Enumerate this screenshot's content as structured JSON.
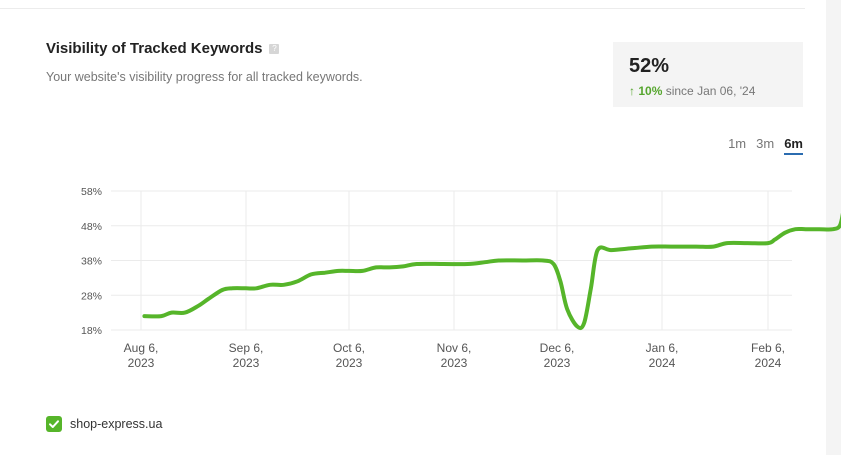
{
  "widget": {
    "title": "Visibility of Tracked Keywords",
    "help_icon": "help-icon",
    "help_glyph": "?",
    "subtitle": "Your website's visibility progress for all tracked keywords."
  },
  "stat": {
    "value": "52%",
    "change_arrow": "↑",
    "change": "10%",
    "since": "since Jan 06, '24"
  },
  "ranges": [
    "1m",
    "3m",
    "6m"
  ],
  "active_range": "6m",
  "legend": {
    "label": "shop-express.ua",
    "checked": true,
    "color": "#56b52a"
  },
  "chart_data": {
    "type": "line",
    "y_ticks": [
      "58%",
      "48%",
      "38%",
      "28%",
      "18%"
    ],
    "y_tick_values": [
      58,
      48,
      38,
      28,
      18
    ],
    "ylim": [
      18,
      58
    ],
    "x_ticks": [
      {
        "label": [
          "Aug 6,",
          "2023"
        ],
        "date": "2023-08-06"
      },
      {
        "label": [
          "Sep 6,",
          "2023"
        ],
        "date": "2023-09-06"
      },
      {
        "label": [
          "Oct 6,",
          "2023"
        ],
        "date": "2023-10-06"
      },
      {
        "label": [
          "Nov 6,",
          "2023"
        ],
        "date": "2023-11-06"
      },
      {
        "label": [
          "Dec 6,",
          "2023"
        ],
        "date": "2023-12-06"
      },
      {
        "label": [
          "Jan 6,",
          "2024"
        ],
        "date": "2024-01-06"
      },
      {
        "label": [
          "Feb 6,",
          "2024"
        ],
        "date": "2024-02-06"
      }
    ],
    "grid": true,
    "line_color": "#56b52a",
    "series": [
      {
        "name": "shop-express.ua",
        "points": [
          [
            "2023-08-07",
            22
          ],
          [
            "2023-08-12",
            22
          ],
          [
            "2023-08-15",
            23
          ],
          [
            "2023-08-19",
            23
          ],
          [
            "2023-08-23",
            25
          ],
          [
            "2023-08-26",
            27
          ],
          [
            "2023-08-30",
            29.5
          ],
          [
            "2023-09-02",
            30
          ],
          [
            "2023-09-06",
            30
          ],
          [
            "2023-09-09",
            30
          ],
          [
            "2023-09-13",
            31
          ],
          [
            "2023-09-17",
            31
          ],
          [
            "2023-09-21",
            32
          ],
          [
            "2023-09-25",
            34
          ],
          [
            "2023-09-29",
            34.5
          ],
          [
            "2023-10-03",
            35
          ],
          [
            "2023-10-06",
            35
          ],
          [
            "2023-10-10",
            35
          ],
          [
            "2023-10-14",
            36
          ],
          [
            "2023-10-18",
            36
          ],
          [
            "2023-10-22",
            36.3
          ],
          [
            "2023-10-26",
            37
          ],
          [
            "2023-11-03",
            37
          ],
          [
            "2023-11-10",
            37
          ],
          [
            "2023-11-15",
            37.5
          ],
          [
            "2023-11-19",
            38
          ],
          [
            "2023-11-26",
            38
          ],
          [
            "2023-12-02",
            38
          ],
          [
            "2023-12-05",
            37
          ],
          [
            "2023-12-07",
            32
          ],
          [
            "2023-12-09",
            24
          ],
          [
            "2023-12-12",
            19
          ],
          [
            "2023-12-14",
            20
          ],
          [
            "2023-12-16",
            30
          ],
          [
            "2023-12-18",
            41
          ],
          [
            "2023-12-22",
            41
          ],
          [
            "2023-12-28",
            41.5
          ],
          [
            "2024-01-03",
            42
          ],
          [
            "2024-01-09",
            42
          ],
          [
            "2024-01-16",
            42
          ],
          [
            "2024-01-21",
            42
          ],
          [
            "2024-01-25",
            43
          ],
          [
            "2024-01-31",
            43
          ],
          [
            "2024-02-06",
            43
          ],
          [
            "2024-02-08",
            44
          ],
          [
            "2024-02-11",
            46
          ],
          [
            "2024-02-14",
            47
          ],
          [
            "2024-02-17",
            47
          ],
          [
            "2024-02-21",
            47
          ],
          [
            "2024-02-25",
            47
          ],
          [
            "2024-02-27",
            48
          ],
          [
            "2024-02-28",
            52
          ]
        ]
      }
    ]
  }
}
